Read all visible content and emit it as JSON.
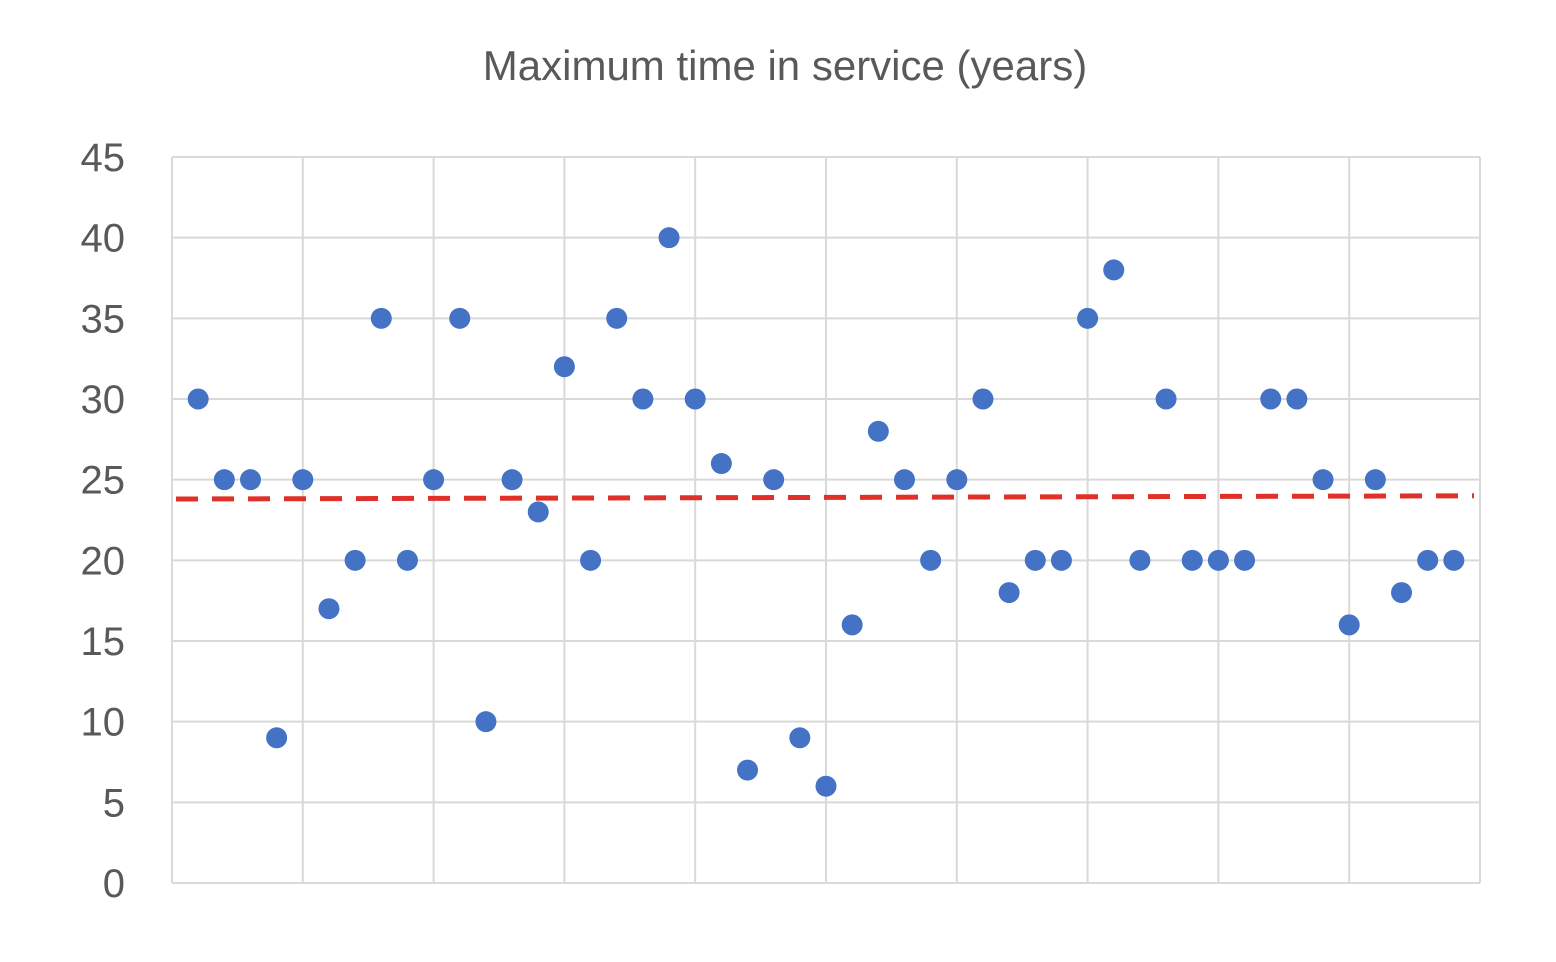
{
  "chart_data": {
    "type": "scatter",
    "title": "Maximum time in service (years)",
    "xlabel": "",
    "ylabel": "",
    "ylim": [
      0,
      45
    ],
    "yticks": [
      0,
      5,
      10,
      15,
      20,
      25,
      30,
      35,
      40,
      45
    ],
    "xlim": [
      0,
      50
    ],
    "grid": true,
    "x": [
      1,
      2,
      3,
      4,
      5,
      6,
      7,
      8,
      9,
      10,
      11,
      12,
      13,
      14,
      15,
      16,
      17,
      18,
      19,
      20,
      21,
      22,
      23,
      24,
      25,
      26,
      27,
      28,
      29,
      30,
      31,
      32,
      33,
      34,
      35,
      36,
      37,
      38,
      39,
      40,
      41,
      42,
      43,
      44,
      45,
      46,
      47,
      48,
      49
    ],
    "series": [
      {
        "values": [
          30,
          25,
          25,
          9,
          25,
          17,
          20,
          35,
          20,
          25,
          35,
          10,
          25,
          23,
          32,
          20,
          35,
          30,
          40,
          30,
          26,
          7,
          25,
          9,
          6,
          16,
          28,
          25,
          20,
          25,
          30,
          18,
          20,
          20,
          35,
          38,
          20,
          30,
          20,
          20,
          20,
          30,
          30,
          25,
          16,
          25,
          18,
          20,
          20
        ],
        "color": "#4472C4"
      }
    ],
    "trendline": {
      "start": 23.8,
      "end": 24.0,
      "color": "#E0302A",
      "style": "dashed"
    },
    "grid_color": "#D9D9D9",
    "text_color": "#595959"
  }
}
